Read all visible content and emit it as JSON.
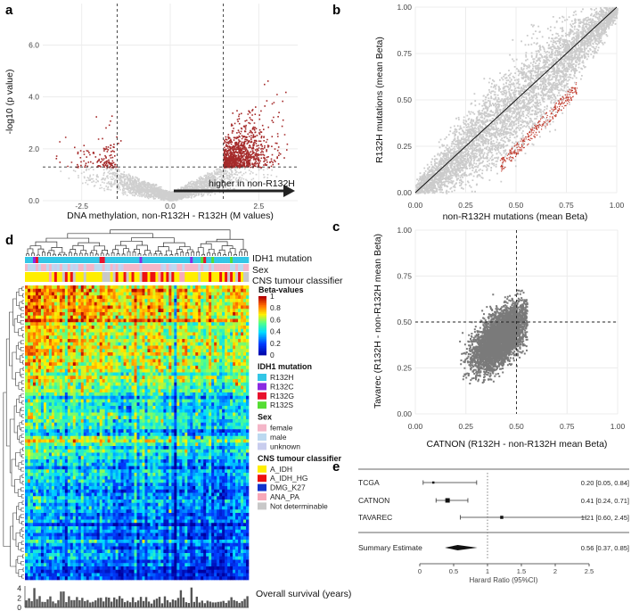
{
  "panels": {
    "a": "a",
    "b": "b",
    "c": "c",
    "d": "d",
    "e": "e"
  },
  "chart_data": [
    {
      "id": "a",
      "type": "scatter",
      "subtype": "volcano",
      "xlabel": "DNA methylation, non-R132H - R132H (M values)",
      "ylabel": "-log10 (p value)",
      "xlim": [
        -3.6,
        3.6
      ],
      "ylim": [
        0,
        7.6
      ],
      "xticks": [
        -2.5,
        0.0,
        2.5
      ],
      "xtick_labels": [
        "-2.5",
        "0.0",
        "2.5"
      ],
      "yticks": [
        0.0,
        2.0,
        4.0,
        6.0
      ],
      "ytick_labels": [
        "0.0",
        "2.0",
        "4.0",
        "6.0"
      ],
      "thresholds": {
        "x": [
          -1.5,
          1.5
        ],
        "y": 1.3
      },
      "arrow_label": "higher in non-R132H",
      "colors": {
        "background": "#cfcfcf",
        "significant": "#a52a2a"
      },
      "grid": true
    },
    {
      "id": "b",
      "type": "scatter",
      "xlabel": "non-R132H mutations (mean Beta)",
      "ylabel": "R132H mutations (mean Beta)",
      "xlim": [
        0,
        1
      ],
      "ylim": [
        0,
        1
      ],
      "xticks": [
        0.0,
        0.25,
        0.5,
        0.75,
        1.0
      ],
      "xtick_labels": [
        "0.00",
        "0.25",
        "0.50",
        "0.75",
        "1.00"
      ],
      "yticks": [
        0.0,
        0.25,
        0.5,
        0.75,
        1.0
      ],
      "ytick_labels": [
        "0.00",
        "0.25",
        "0.50",
        "0.75",
        "1.00"
      ],
      "diagonal": true,
      "colors": {
        "points": "#cbcbcb",
        "highlight": "#c0392b"
      },
      "grid": true
    },
    {
      "id": "c",
      "type": "scatter",
      "xlabel": "CATNON (R132H - non-R132H mean Beta)",
      "ylabel": "Tavarec (R132H - non-R132H mean Beta)",
      "xlim": [
        0,
        1
      ],
      "ylim": [
        0,
        1
      ],
      "xticks": [
        0.0,
        0.25,
        0.5,
        0.75,
        1.0
      ],
      "xtick_labels": [
        "0.00",
        "0.25",
        "0.50",
        "0.75",
        "1.00"
      ],
      "yticks": [
        0.0,
        0.25,
        0.5,
        0.75,
        1.0
      ],
      "ytick_labels": [
        "0.00",
        "0.25",
        "0.50",
        "0.75",
        "1.00"
      ],
      "reference_lines": {
        "x": 0.5,
        "y": 0.5
      },
      "colors": {
        "points": "#7a7a7a"
      },
      "grid": true
    },
    {
      "id": "d",
      "type": "heatmap",
      "annotation_rows": [
        "IDH1 mutation",
        "Sex",
        "CNS tumour classifier"
      ],
      "colorbar_title": "Beta-values",
      "colorbar_ticks": [
        1,
        0.8,
        0.6,
        0.4,
        0.2,
        0
      ],
      "colorbar_tick_labels": [
        "1",
        "0.8",
        "0.6",
        "0.4",
        "0.2",
        "0"
      ],
      "legends": [
        {
          "title": "IDH1 mutation",
          "items": [
            {
              "label": "R132H",
              "color": "#33c6e6"
            },
            {
              "label": "R132C",
              "color": "#8b2be2"
            },
            {
              "label": "R132G",
              "color": "#e8112d"
            },
            {
              "label": "R132S",
              "color": "#55dd33"
            }
          ]
        },
        {
          "title": "Sex",
          "items": [
            {
              "label": "female",
              "color": "#f4b6c8"
            },
            {
              "label": "male",
              "color": "#bcd9f0"
            },
            {
              "label": "unknown",
              "color": "#c9cdee"
            }
          ]
        },
        {
          "title": "CNS tumour classifier",
          "items": [
            {
              "label": "A_IDH",
              "color": "#ffee00"
            },
            {
              "label": "A_IDH_HG",
              "color": "#ee1111"
            },
            {
              "label": "DMG_K27",
              "color": "#1133cc"
            },
            {
              "label": "ANA_PA",
              "color": "#f7a8b8"
            },
            {
              "label": "Not determinable",
              "color": "#c8c8c8"
            }
          ]
        }
      ],
      "survival_label": "Overall survival (years)",
      "survival_yticks": [
        0,
        2,
        4
      ],
      "survival_ytick_labels": [
        "0",
        "2",
        "4"
      ]
    },
    {
      "id": "e",
      "type": "forest",
      "studies": [
        {
          "name": "TCGA",
          "estimate": 0.2,
          "lower": 0.05,
          "upper": 0.84,
          "ci_text": "0.20 [0.05, 0.84]"
        },
        {
          "name": "CATNON",
          "estimate": 0.41,
          "lower": 0.24,
          "upper": 0.71,
          "ci_text": "0.41 [0.24, 0.71]"
        },
        {
          "name": "TAVAREC",
          "estimate": 1.21,
          "lower": 0.6,
          "upper": 2.45,
          "ci_text": "1.21 [0.60, 2.45]"
        }
      ],
      "summary": {
        "name": "Summary Estimate",
        "estimate": 0.56,
        "lower": 0.37,
        "upper": 0.85,
        "ci_text": "0.56 [0.37, 0.85]"
      },
      "xlabel": "Harard Ratio (95%CI)",
      "xlim": [
        0,
        2.5
      ],
      "xticks": [
        0,
        0.5,
        1,
        1.5,
        2,
        2.5
      ],
      "xtick_labels": [
        "0",
        "0.5",
        "1",
        "1.5",
        "2",
        "2.5"
      ],
      "reference_line": 1
    }
  ]
}
